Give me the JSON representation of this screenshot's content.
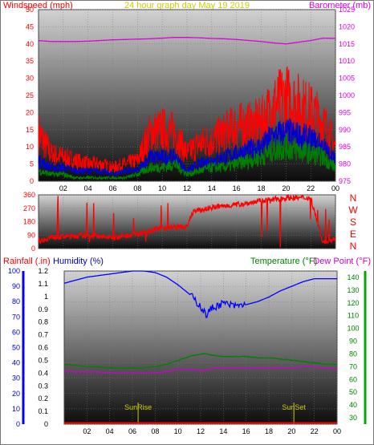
{
  "title": "24 hour graph day   May 19 2019",
  "colors": {
    "wind_speed": "#ff0000",
    "wind_avg": "#0000cc",
    "wind_low": "#008000",
    "barometer": "#dd00dd",
    "direction": "#ff0000",
    "humidity": "#0000ff",
    "temperature": "#008000",
    "dew_point": "#cc00cc",
    "rainfall": "#ff0000",
    "sun": "#cccc00",
    "title": "#cccc00"
  },
  "hour_ticks": [
    "02",
    "04",
    "06",
    "08",
    "10",
    "12",
    "14",
    "16",
    "18",
    "20",
    "22",
    "00"
  ],
  "chart_data": [
    {
      "id": "wind",
      "type": "line",
      "left_axis_label": "Windspeed (mph)",
      "right_axis_label": "Barometer (mb)",
      "y_left_ticks": [
        "0",
        "5",
        "10",
        "15",
        "20",
        "25",
        "30",
        "35",
        "40",
        "45",
        "50"
      ],
      "y_right_ticks": [
        "975",
        "980",
        "985",
        "990",
        "995",
        "1000",
        "1005",
        "1010",
        "1015",
        "1020",
        "1025"
      ],
      "ylim_left": [
        0,
        50
      ],
      "ylim_right": [
        975,
        1025
      ],
      "hours": [
        0,
        1,
        2,
        3,
        4,
        5,
        6,
        7,
        8,
        9,
        10,
        11,
        12,
        13,
        14,
        15,
        16,
        17,
        18,
        19,
        20,
        21,
        22,
        23,
        24
      ],
      "series": [
        {
          "key": "speed",
          "values": [
            14,
            8,
            7,
            6,
            5,
            5,
            4,
            5,
            6,
            14,
            15,
            14,
            8,
            11,
            12,
            14,
            16,
            16,
            17,
            22,
            24,
            22,
            20,
            17,
            10
          ]
        },
        {
          "key": "avg",
          "values": [
            6,
            4,
            4,
            3,
            3,
            3,
            2,
            3,
            3,
            7,
            7,
            7,
            3,
            5,
            6,
            7,
            8,
            9,
            10,
            13,
            14,
            13,
            12,
            10,
            6
          ]
        },
        {
          "key": "low",
          "values": [
            3,
            2,
            2,
            1,
            1,
            1,
            1,
            1,
            2,
            4,
            4,
            5,
            2,
            3,
            4,
            4,
            5,
            6,
            7,
            9,
            10,
            9,
            8,
            7,
            4
          ]
        },
        {
          "key": "barometer",
          "values": [
            1016.0,
            1015.7,
            1015.7,
            1015.7,
            1015.8,
            1016.0,
            1016.2,
            1016.3,
            1016.4,
            1016.5,
            1016.7,
            1016.9,
            1016.9,
            1016.8,
            1016.6,
            1016.5,
            1016.3,
            1016.0,
            1015.7,
            1015.3,
            1015.0,
            1015.5,
            1016.0,
            1016.7,
            1016.6
          ]
        }
      ]
    },
    {
      "id": "direction",
      "type": "line",
      "y_ticks": [
        "0",
        "90",
        "180",
        "270",
        "360"
      ],
      "ylim": [
        0,
        360
      ],
      "compass_labels": [
        "N",
        "W",
        "S",
        "E",
        "N"
      ],
      "hours": [
        0,
        1,
        2,
        3,
        4,
        5,
        6,
        7,
        8,
        9,
        10,
        11,
        12,
        12.5,
        13,
        14,
        15,
        16,
        17,
        18,
        19,
        20,
        21,
        22,
        23,
        24
      ],
      "values": [
        50,
        75,
        80,
        85,
        88,
        80,
        75,
        85,
        100,
        120,
        140,
        145,
        145,
        250,
        255,
        275,
        285,
        295,
        305,
        320,
        330,
        340,
        340,
        340,
        40,
        70
      ]
    },
    {
      "id": "thermo",
      "type": "line",
      "axis_labels": {
        "rainfall": "Rainfall (.in)",
        "humidity": "Humidity (%)",
        "temperature": "Temperature (°F)",
        "dew_point": "Dew Point (°F)"
      },
      "y_humidity_ticks": [
        "0",
        "10",
        "20",
        "30",
        "40",
        "50",
        "60",
        "70",
        "80",
        "90",
        "100"
      ],
      "y_rain_ticks": [
        "0",
        "0.1",
        "0.2",
        "0.3",
        "0.4",
        "0.5",
        "0.6",
        "0.7",
        "0.8",
        "0.9",
        "1",
        "1.1",
        "1.2"
      ],
      "y_temp_ticks": [
        "30",
        "40",
        "50",
        "60",
        "70",
        "80",
        "90",
        "100",
        "110",
        "120",
        "130",
        "140"
      ],
      "ylim_humidity": [
        0,
        100
      ],
      "ylim_temp": [
        25,
        145
      ],
      "hours": [
        0,
        1,
        2,
        3,
        4,
        5,
        6,
        7,
        8,
        9,
        10,
        11,
        12,
        12.5,
        13,
        14,
        15,
        16,
        17,
        18,
        19,
        20,
        21,
        22,
        23,
        24
      ],
      "series": [
        {
          "key": "humidity",
          "values": [
            92,
            94,
            96,
            97,
            98,
            99,
            100,
            100,
            99,
            96,
            91,
            85,
            77,
            71,
            76,
            79,
            77,
            78,
            80,
            83,
            87,
            90,
            93,
            95,
            95,
            95
          ]
        },
        {
          "key": "temperature",
          "values": [
            72,
            71,
            70,
            70,
            69,
            69,
            69,
            69,
            70,
            72,
            75,
            78,
            80,
            80,
            79,
            78,
            78,
            78,
            77,
            77,
            76,
            75,
            74,
            73,
            72,
            72
          ]
        },
        {
          "key": "dew_point",
          "values": [
            67,
            66,
            66,
            66,
            65,
            65,
            65,
            65,
            65,
            66,
            68,
            68,
            67,
            67,
            69,
            69,
            69,
            69,
            69,
            69,
            69,
            69,
            70,
            70,
            69,
            68
          ]
        },
        {
          "key": "rainfall",
          "values": [
            0,
            0,
            0,
            0,
            0,
            0,
            0,
            0,
            0,
            0,
            0,
            0,
            0,
            0,
            0,
            0,
            0,
            0,
            0,
            0,
            0,
            0,
            0,
            0,
            0,
            0
          ]
        }
      ],
      "markers": [
        {
          "label": "SunRise",
          "hour": 6.5
        },
        {
          "label": "SunSet",
          "hour": 20.2
        }
      ]
    }
  ]
}
